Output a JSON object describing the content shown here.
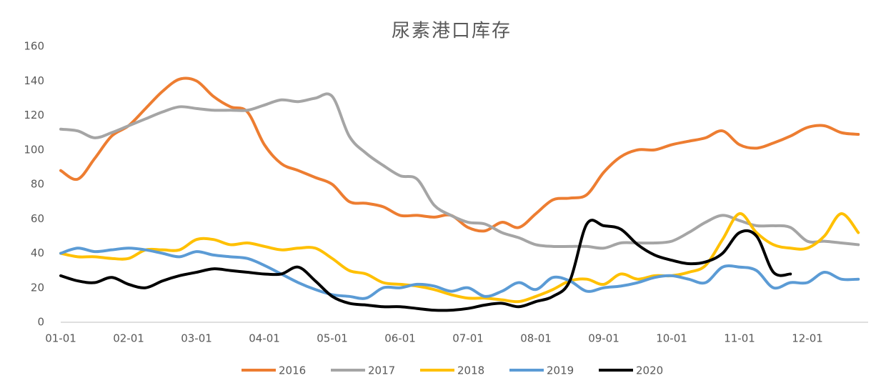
{
  "chart_data": {
    "type": "line",
    "title": "尿素港口库存",
    "categories": [
      "01-01",
      null,
      null,
      null,
      "02-01",
      null,
      null,
      null,
      "03-01",
      null,
      null,
      null,
      "04-01",
      null,
      null,
      null,
      "05-01",
      null,
      null,
      null,
      "06-01",
      null,
      null,
      null,
      "07-01",
      null,
      null,
      null,
      "08-01",
      null,
      null,
      null,
      "09-01",
      null,
      null,
      null,
      "10-01",
      null,
      null,
      null,
      "11-01",
      null,
      null,
      null,
      "12-01",
      null,
      null,
      null
    ],
    "series": [
      {
        "name": "2016",
        "color": "#ED7D31",
        "values": [
          88,
          83,
          95,
          108,
          114,
          124,
          134,
          141,
          140,
          131,
          125,
          122,
          103,
          92,
          88,
          84,
          80,
          70,
          69,
          67,
          62,
          62,
          61,
          62,
          55,
          53,
          58,
          55,
          63,
          71,
          72,
          74,
          87,
          96,
          100,
          100,
          103,
          105,
          107,
          111,
          103,
          101,
          104,
          108,
          113,
          114,
          110,
          109
        ]
      },
      {
        "name": "2017",
        "color": "#A5A5A5",
        "values": [
          112,
          111,
          107,
          110,
          114,
          118,
          122,
          125,
          124,
          123,
          123,
          123,
          126,
          129,
          128,
          130,
          131,
          108,
          98,
          91,
          85,
          83,
          68,
          62,
          58,
          57,
          52,
          49,
          45,
          44,
          44,
          44,
          43,
          46,
          46,
          46,
          47,
          52,
          58,
          62,
          59,
          56,
          56,
          55,
          47,
          47,
          46,
          45
        ]
      },
      {
        "name": "2018",
        "color": "#FFC000",
        "values": [
          40,
          38,
          38,
          37,
          37,
          42,
          42,
          42,
          48,
          48,
          45,
          46,
          44,
          42,
          43,
          43,
          37,
          30,
          28,
          23,
          22,
          21,
          19,
          16,
          14,
          14,
          13,
          12,
          15,
          19,
          24,
          25,
          22,
          28,
          25,
          27,
          27,
          29,
          33,
          48,
          63,
          52,
          45,
          43,
          43,
          50,
          63,
          52
        ]
      },
      {
        "name": "2019",
        "color": "#5B9BD5",
        "values": [
          40,
          43,
          41,
          42,
          43,
          42,
          40,
          38,
          41,
          39,
          38,
          37,
          33,
          28,
          23,
          19,
          16,
          15,
          14,
          20,
          20,
          22,
          21,
          18,
          20,
          15,
          18,
          23,
          19,
          26,
          24,
          18,
          20,
          21,
          23,
          26,
          27,
          25,
          23,
          32,
          32,
          30,
          20,
          23,
          23,
          29,
          25,
          25
        ]
      },
      {
        "name": "2020",
        "color": "#000000",
        "values": [
          27,
          24,
          23,
          26,
          22,
          20,
          24,
          27,
          29,
          31,
          30,
          29,
          28,
          28,
          32,
          24,
          15,
          11,
          10,
          9,
          9,
          8,
          7,
          7,
          8,
          10,
          11,
          9,
          12,
          15,
          24,
          57,
          56,
          54,
          45,
          39,
          36,
          34,
          35,
          40,
          52,
          50,
          29,
          28,
          null,
          null,
          null,
          null
        ]
      }
    ],
    "ylim": [
      0,
      160
    ],
    "yticks": [
      0,
      20,
      40,
      60,
      80,
      100,
      120,
      140,
      160
    ]
  }
}
